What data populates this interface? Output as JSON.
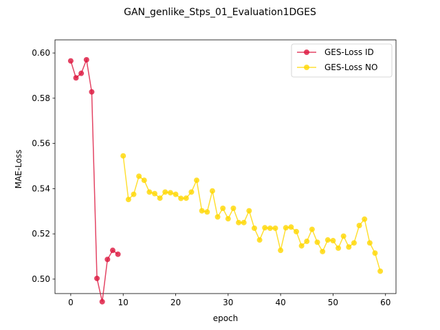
{
  "chart_data": {
    "type": "line",
    "title": "GAN_genlike_Stps_01_Evaluation1DGES",
    "xlabel": "epoch",
    "ylabel": "MAE-Loss",
    "xlim": [
      -3,
      62
    ],
    "ylim": [
      0.4936,
      0.6058
    ],
    "xticks": [
      0,
      10,
      20,
      30,
      40,
      50,
      60
    ],
    "yticks": [
      0.5,
      0.52,
      0.54,
      0.56,
      0.58,
      0.6
    ],
    "ytick_labels": [
      "0.50",
      "0.52",
      "0.54",
      "0.56",
      "0.58",
      "0.60"
    ],
    "grid": false,
    "legend_position": "top-right",
    "series": [
      {
        "name": "GES-Loss ID",
        "color": "#dc143c",
        "x": [
          0,
          1,
          2,
          3,
          4,
          5,
          6,
          7,
          8,
          9
        ],
        "values": [
          0.5965,
          0.589,
          0.591,
          0.597,
          0.5828,
          0.5003,
          0.49,
          0.5087,
          0.5127,
          0.511
        ]
      },
      {
        "name": "GES-Loss NO",
        "color": "#ffd700",
        "x": [
          10,
          11,
          12,
          13,
          14,
          15,
          16,
          17,
          18,
          19,
          20,
          21,
          22,
          23,
          24,
          25,
          26,
          27,
          28,
          29,
          30,
          31,
          32,
          33,
          34,
          35,
          36,
          37,
          38,
          39,
          40,
          41,
          42,
          43,
          44,
          45,
          46,
          47,
          48,
          49,
          50,
          51,
          52,
          53,
          54,
          55,
          56,
          57,
          58,
          59
        ],
        "values": [
          0.5545,
          0.5352,
          0.5375,
          0.5455,
          0.5437,
          0.5385,
          0.5378,
          0.5358,
          0.5385,
          0.5382,
          0.5375,
          0.5357,
          0.5358,
          0.5385,
          0.5437,
          0.5302,
          0.5297,
          0.539,
          0.5275,
          0.5313,
          0.5267,
          0.5313,
          0.525,
          0.525,
          0.5302,
          0.5225,
          0.5173,
          0.5227,
          0.5225,
          0.5225,
          0.5127,
          0.5227,
          0.523,
          0.521,
          0.5147,
          0.5167,
          0.522,
          0.5163,
          0.5122,
          0.5173,
          0.517,
          0.5137,
          0.519,
          0.5142,
          0.516,
          0.5237,
          0.5265,
          0.516,
          0.5115,
          0.5035
        ]
      }
    ]
  }
}
